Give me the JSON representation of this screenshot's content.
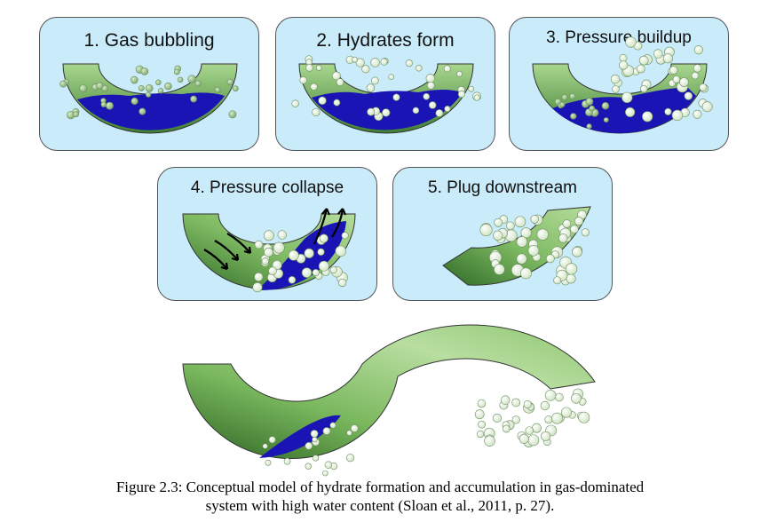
{
  "panels": [
    {
      "number": "1.",
      "title": "Gas bubbling"
    },
    {
      "number": "2.",
      "title": "Hydrates form"
    },
    {
      "number": "3.",
      "title": "Pressure buildup"
    },
    {
      "number": "4.",
      "title": "Pressure collapse"
    },
    {
      "number": "5.",
      "title": "Plug downstream"
    }
  ],
  "caption": {
    "line1": "Figure 2.3: Conceptual model of hydrate formation and accumulation in gas-dominated",
    "line2": "system with high water content (Sloan et al., 2011, p. 27)."
  },
  "colors": {
    "panel_bg": "#c9ebfa",
    "pipe_green": "#8cc470",
    "pipe_dark": "#3c7a30",
    "water_blue": "#1a14b4",
    "hydrate": "#e6f2dc"
  }
}
